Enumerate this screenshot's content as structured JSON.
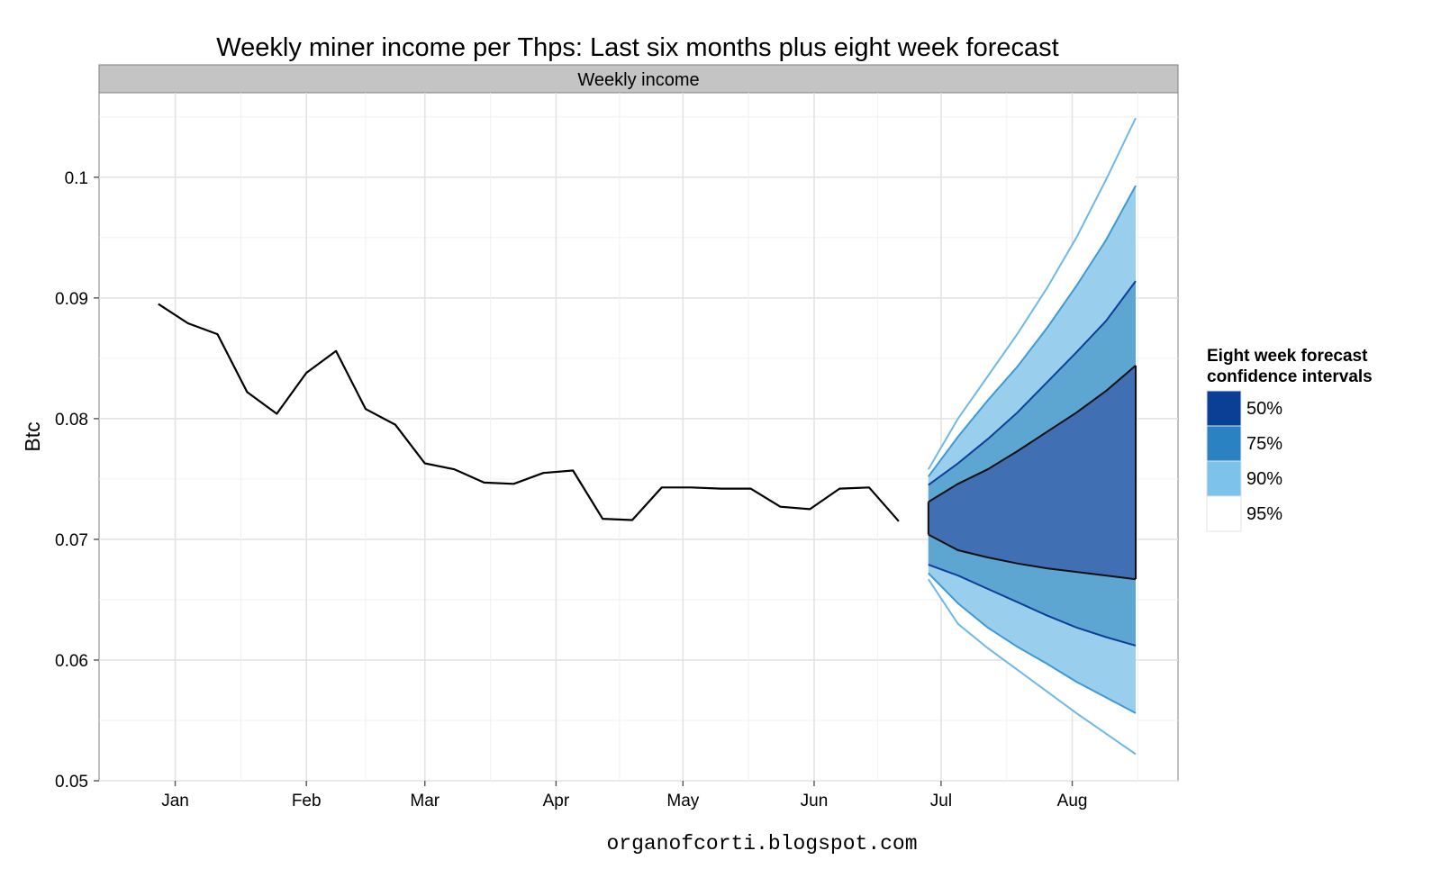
{
  "chart_data": {
    "type": "line",
    "title": "Weekly miner income per Thps: Last six months plus eight week forecast",
    "panel_label": "Weekly income",
    "ylabel": "Btc",
    "xlabel": "",
    "ylim": [
      0.05,
      0.107
    ],
    "y_ticks": [
      0.05,
      0.06,
      0.07,
      0.08,
      0.09,
      0.1
    ],
    "y_tick_labels": [
      "0.05",
      "0.06",
      "0.07",
      "0.08",
      "0.09",
      "0.1"
    ],
    "x_tick_labels": [
      "Jan",
      "Feb",
      "Mar",
      "Apr",
      "May",
      "Jun",
      "Jul",
      "Aug"
    ],
    "x_tick_dates": [
      "2013-01-01",
      "2013-02-01",
      "2013-03-01",
      "2013-04-01",
      "2013-05-01",
      "2013-06-01",
      "2013-07-01",
      "2013-08-01"
    ],
    "xlim": [
      "2012-12-14",
      "2013-08-26"
    ],
    "grid": true,
    "legend_position": "right",
    "history": {
      "x": [
        "2012-12-28",
        "2013-01-04",
        "2013-01-11",
        "2013-01-18",
        "2013-01-25",
        "2013-02-01",
        "2013-02-08",
        "2013-02-15",
        "2013-02-22",
        "2013-03-01",
        "2013-03-08",
        "2013-03-15",
        "2013-03-22",
        "2013-03-29",
        "2013-04-05",
        "2013-04-12",
        "2013-04-19",
        "2013-04-26",
        "2013-05-03",
        "2013-05-10",
        "2013-05-17",
        "2013-05-24",
        "2013-05-31",
        "2013-06-07",
        "2013-06-14",
        "2013-06-21"
      ],
      "y": [
        0.0895,
        0.0879,
        0.087,
        0.0822,
        0.0804,
        0.0838,
        0.0856,
        0.0808,
        0.0795,
        0.0763,
        0.0758,
        0.0747,
        0.0746,
        0.0755,
        0.0757,
        0.0717,
        0.0716,
        0.0743,
        0.0743,
        0.0742,
        0.0742,
        0.0727,
        0.0725,
        0.0742,
        0.0743,
        0.0715
      ]
    },
    "forecast": {
      "x": [
        "2013-06-28",
        "2013-07-05",
        "2013-07-12",
        "2013-07-19",
        "2013-07-26",
        "2013-08-02",
        "2013-08-09",
        "2013-08-16"
      ],
      "intervals": [
        {
          "name": "95%",
          "color": "#ffffff",
          "edge": "#6fb8e8",
          "upper": [
            0.0758,
            0.08,
            0.0835,
            0.087,
            0.0908,
            0.095,
            0.0998,
            0.1049
          ],
          "lower": [
            0.0667,
            0.063,
            0.061,
            0.0592,
            0.0574,
            0.0556,
            0.0539,
            0.0522
          ]
        },
        {
          "name": "90%",
          "color": "#99ceed",
          "edge": "#3d9ad6",
          "upper": [
            0.0752,
            0.0785,
            0.0815,
            0.0843,
            0.0875,
            0.091,
            0.0948,
            0.0993
          ],
          "lower": [
            0.0672,
            0.0647,
            0.0627,
            0.0611,
            0.0597,
            0.0582,
            0.0569,
            0.0556
          ]
        },
        {
          "name": "75%",
          "color": "#5ea6d2",
          "edge": "#0b3f9c",
          "upper": [
            0.0745,
            0.0763,
            0.0783,
            0.0805,
            0.083,
            0.0855,
            0.0881,
            0.0914
          ],
          "lower": [
            0.0679,
            0.067,
            0.0659,
            0.0648,
            0.0637,
            0.0627,
            0.0619,
            0.0612
          ]
        },
        {
          "name": "50%",
          "color": "#416fb3",
          "edge": "#111111",
          "upper": [
            0.0731,
            0.0746,
            0.0758,
            0.0773,
            0.0789,
            0.0805,
            0.0823,
            0.0844
          ],
          "lower": [
            0.0704,
            0.0691,
            0.0685,
            0.068,
            0.0676,
            0.0673,
            0.067,
            0.0667
          ]
        }
      ]
    },
    "legend": {
      "title_line1": "Eight week forecast",
      "title_line2": "confidence intervals",
      "entries": [
        {
          "label": "50%",
          "color": "#0b3f95"
        },
        {
          "label": "75%",
          "color": "#2b82c3"
        },
        {
          "label": "90%",
          "color": "#7cc2ea"
        },
        {
          "label": "95%",
          "color": "#ffffff"
        }
      ]
    },
    "caption": "organofcorti.blogspot.com"
  }
}
